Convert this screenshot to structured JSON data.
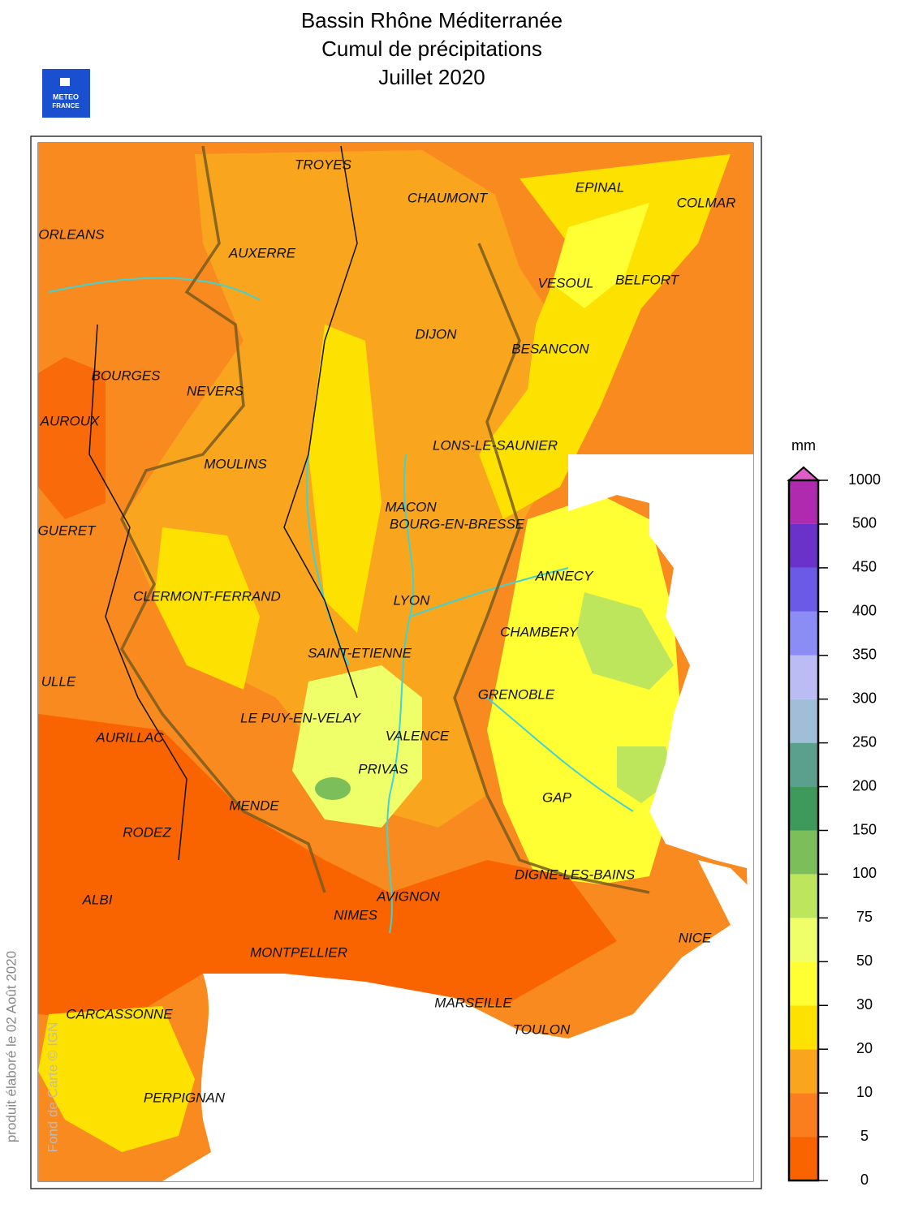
{
  "header": {
    "title_lines": [
      "Bassin Rhône Méditerranée",
      "Cumul de précipitations",
      "Juillet 2020"
    ],
    "logo": [
      "METEO",
      "FRANCE"
    ]
  },
  "cities": [
    "TROYES",
    "CHAUMONT",
    "EPINAL",
    "COLMAR",
    "ORLEANS",
    "AUXERRE",
    "VESOUL",
    "BELFORT",
    "DIJON",
    "BESANCON",
    "BOURGES",
    "NEVERS",
    "AUROUX",
    "LONS-LE-SAUNIER",
    "MOULINS",
    "MACON",
    "BOURG-EN-BRESSE",
    "GUERET",
    "ANNECY",
    "CLERMONT-FERRAND",
    "LYON",
    "CHAMBERY",
    "SAINT-ETIENNE",
    "ULLE",
    "GRENOBLE",
    "LE PUY-EN-VELAY",
    "AURILLAC",
    "VALENCE",
    "PRIVAS",
    "GAP",
    "MENDE",
    "RODEZ",
    "DIGNE-LES-BAINS",
    "ALBI",
    "AVIGNON",
    "NIMES",
    "NICE",
    "MONTPELLIER",
    "MARSEILLE",
    "CARCASSONNE",
    "TOULON",
    "PERPIGNAN"
  ],
  "legend": {
    "unit": "mm",
    "ticks": [
      0,
      5,
      10,
      20,
      30,
      50,
      75,
      100,
      150,
      200,
      250,
      300,
      350,
      400,
      450,
      500,
      1000
    ],
    "colors": [
      "#fa6400",
      "#fa7d1e",
      "#f9a61e",
      "#fde100",
      "#ffff33",
      "#eeff6a",
      "#bde65c",
      "#7cbf5a",
      "#3d9a5a",
      "#5aa08c",
      "#a0bed8",
      "#bcbcf5",
      "#8c8cf5",
      "#6a5ae6",
      "#6a32c8",
      "#b02ab0"
    ],
    "overflow_color": "#e05cc8"
  },
  "footer": {
    "credit": "produit élaboré le 02 Août 2020",
    "source": "Fond de Carte © IGN"
  }
}
